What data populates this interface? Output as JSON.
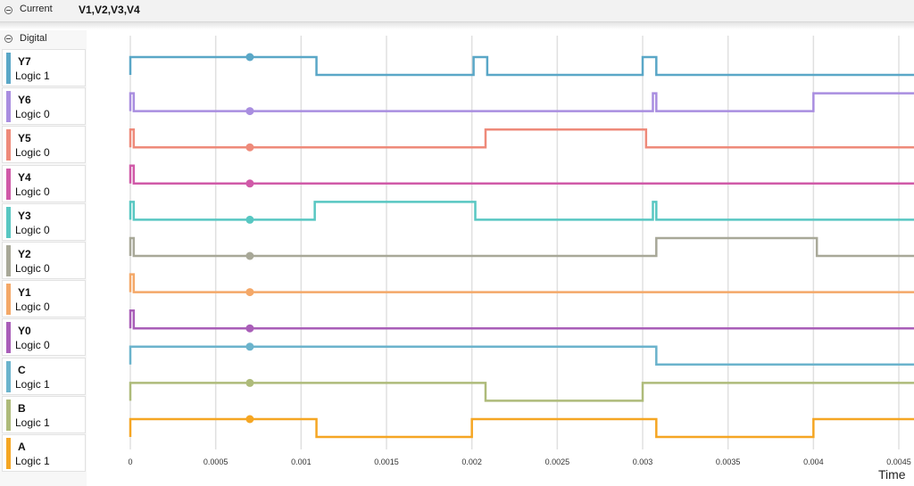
{
  "header": {
    "icon": "collapse-circle-icon",
    "label": "Current",
    "value": "V1,V2,V3,V4"
  },
  "digital": {
    "icon": "collapse-circle-icon",
    "label": "Digital"
  },
  "channels": [
    {
      "name": "Y7",
      "state": "Logic 1",
      "color": "#5aa7c7",
      "trace": [
        [
          0,
          1
        ],
        [
          0.00109,
          0
        ],
        [
          0.00201,
          1
        ],
        [
          0.00209,
          0
        ],
        [
          0.003,
          1
        ],
        [
          0.00308,
          0
        ]
      ]
    },
    {
      "name": "Y6",
      "state": "Logic 0",
      "color": "#a98ee0",
      "trace": [
        [
          0,
          1
        ],
        [
          2e-05,
          0
        ],
        [
          0.00306,
          1
        ],
        [
          0.00308,
          0
        ],
        [
          0.004,
          1
        ]
      ]
    },
    {
      "name": "Y5",
      "state": "Logic 0",
      "color": "#ee8a7a",
      "trace": [
        [
          0,
          1
        ],
        [
          2e-05,
          0
        ],
        [
          0.00208,
          1
        ],
        [
          0.00302,
          0
        ]
      ]
    },
    {
      "name": "Y4",
      "state": "Logic 0",
      "color": "#d05aa8",
      "trace": [
        [
          0,
          1
        ],
        [
          2e-05,
          0
        ]
      ]
    },
    {
      "name": "Y3",
      "state": "Logic 0",
      "color": "#58c7c2",
      "trace": [
        [
          0,
          1
        ],
        [
          2e-05,
          0
        ],
        [
          0.00108,
          1
        ],
        [
          0.00202,
          0
        ],
        [
          0.00306,
          1
        ],
        [
          0.00308,
          0
        ]
      ]
    },
    {
      "name": "Y2",
      "state": "Logic 0",
      "color": "#a8a898",
      "trace": [
        [
          0,
          1
        ],
        [
          2e-05,
          0
        ],
        [
          0.00308,
          1
        ],
        [
          0.00402,
          0
        ]
      ]
    },
    {
      "name": "Y1",
      "state": "Logic 0",
      "color": "#f4a868",
      "trace": [
        [
          0,
          1
        ],
        [
          2e-05,
          0
        ]
      ]
    },
    {
      "name": "Y0",
      "state": "Logic 0",
      "color": "#a95eb8",
      "trace": [
        [
          0,
          1
        ],
        [
          2e-05,
          0
        ]
      ]
    },
    {
      "name": "C",
      "state": "Logic 1",
      "color": "#6bb3cc",
      "trace": [
        [
          0,
          1
        ],
        [
          0.00308,
          0
        ]
      ]
    },
    {
      "name": "B",
      "state": "Logic 1",
      "color": "#aebb7a",
      "trace": [
        [
          0,
          1
        ],
        [
          0.00208,
          0
        ],
        [
          0.003,
          1
        ]
      ]
    },
    {
      "name": "A",
      "state": "Logic 1",
      "color": "#f5a623",
      "trace": [
        [
          0,
          1
        ],
        [
          0.00109,
          0
        ],
        [
          0.002,
          1
        ],
        [
          0.00308,
          0
        ],
        [
          0.004,
          1
        ]
      ]
    }
  ],
  "chart_data": {
    "type": "line",
    "xlabel": "Time",
    "xlim": [
      0,
      0.0045
    ],
    "x_ticks": [
      "0",
      "0.0005",
      "0.001",
      "0.0015",
      "0.002",
      "0.0025",
      "0.003",
      "0.0035",
      "0.004",
      "0.0045"
    ],
    "x_tick_values": [
      0,
      0.0005,
      0.001,
      0.0015,
      0.002,
      0.0025,
      0.003,
      0.0035,
      0.004,
      0.0045
    ],
    "cursor_x": 0.0007,
    "grid": true
  }
}
